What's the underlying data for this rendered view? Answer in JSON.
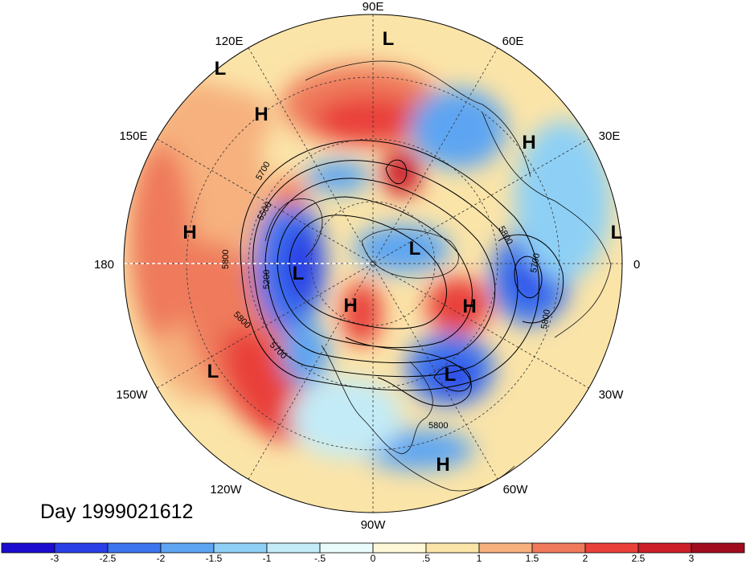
{
  "title": "Day 1999021612",
  "colorbar": {
    "colors": [
      "#1c0ccf",
      "#2a3fe6",
      "#3c75ee",
      "#5da5f2",
      "#8ed0f5",
      "#c3ebf7",
      "#eafbfc",
      "#fdf7d7",
      "#fbe4a8",
      "#f6b17e",
      "#ef7a5b",
      "#e9403a",
      "#cc1f2a",
      "#a10d1f"
    ],
    "ticks": [
      "-3",
      "-2.5",
      "-2",
      "-1.5",
      "-1",
      "-.5",
      "0",
      ".5",
      "1",
      "1.5",
      "2",
      "2.5",
      "3"
    ]
  },
  "longitude_labels": {
    "lon_90e": "90E",
    "lon_60e": "60E",
    "lon_30e": "30E",
    "lon_0": "0",
    "lon_30w": "30W",
    "lon_60w": "60W",
    "lon_90w": "90W",
    "lon_120w": "120W",
    "lon_150w": "150W",
    "lon_180": "180",
    "lon_150e": "150E",
    "lon_120e": "120E"
  },
  "pressure_centers": [
    {
      "type": "L"
    },
    {
      "type": "L"
    },
    {
      "type": "H"
    },
    {
      "type": "H"
    },
    {
      "type": "L"
    },
    {
      "type": "H"
    },
    {
      "type": "L"
    },
    {
      "type": "L"
    },
    {
      "type": "H"
    },
    {
      "type": "H"
    },
    {
      "type": "L"
    },
    {
      "type": "L"
    },
    {
      "type": "H"
    }
  ],
  "contour_labels": [
    "5700",
    "5500",
    "5800",
    "5200",
    "5800",
    "5700",
    "5800",
    "5700",
    "5800",
    "5800"
  ]
}
